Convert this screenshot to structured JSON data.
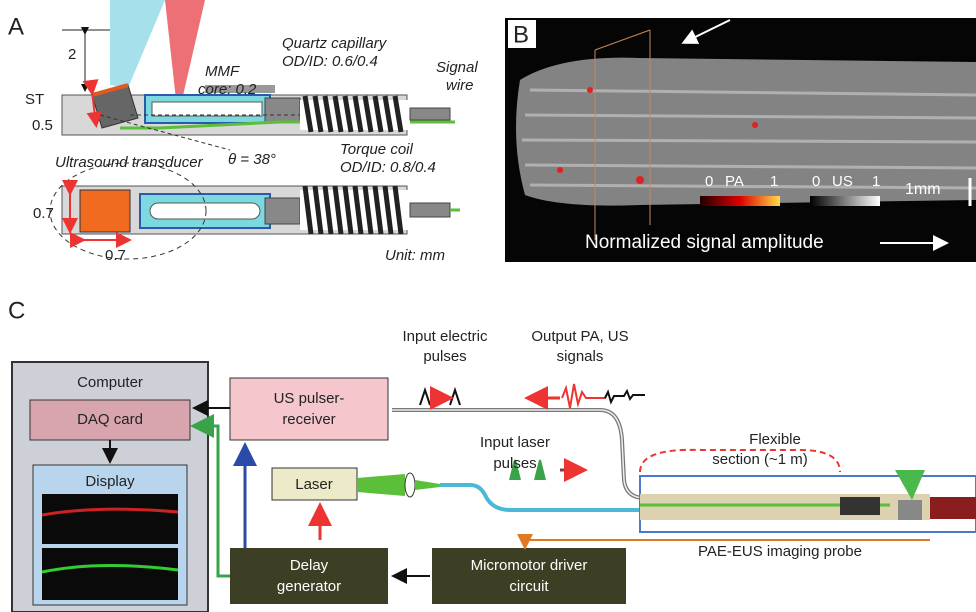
{
  "panel_a": {
    "label": "A",
    "dimension_top": "2",
    "st_label": "ST",
    "st_value": "0.5",
    "mmf": [
      "MMF",
      "core: 0.2"
    ],
    "quartz_capillary": [
      "Quartz capillary",
      "OD/ID: 0.6/0.4"
    ],
    "signal_wire": [
      "Signal",
      "wire"
    ],
    "ultrasound_transducer": "Ultrasound transducer",
    "angle": "θ = 38°",
    "torque_coil": [
      "Torque coil",
      "OD/ID: 0.8/0.4"
    ],
    "transducer_height": "0.7",
    "transducer_width": "0.7",
    "unit": "Unit: mm"
  },
  "panel_b": {
    "label": "B",
    "pa_scale": [
      "0",
      "PA",
      "1"
    ],
    "us_scale": [
      "0",
      "US",
      "1"
    ],
    "scale_bar": "1mm",
    "colorbar_caption": "Normalized signal amplitude"
  },
  "panel_c": {
    "label": "C",
    "computer": "Computer",
    "daq_card": "DAQ card",
    "display": "Display",
    "us_pulser_receiver": [
      "US pulser-",
      "receiver"
    ],
    "laser": "Laser",
    "delay_generator": [
      "Delay",
      "generator"
    ],
    "micromotor_driver": [
      "Micromotor driver",
      "circuit"
    ],
    "input_electric_pulses": [
      "Input electric",
      "pulses"
    ],
    "output_signals": [
      "Output PA, US",
      "signals"
    ],
    "input_laser_pulses": [
      "Input laser",
      "pulses"
    ],
    "flexible_section": [
      "Flexible",
      "section (~1 m)"
    ],
    "probe": "PAE-EUS imaging probe"
  }
}
